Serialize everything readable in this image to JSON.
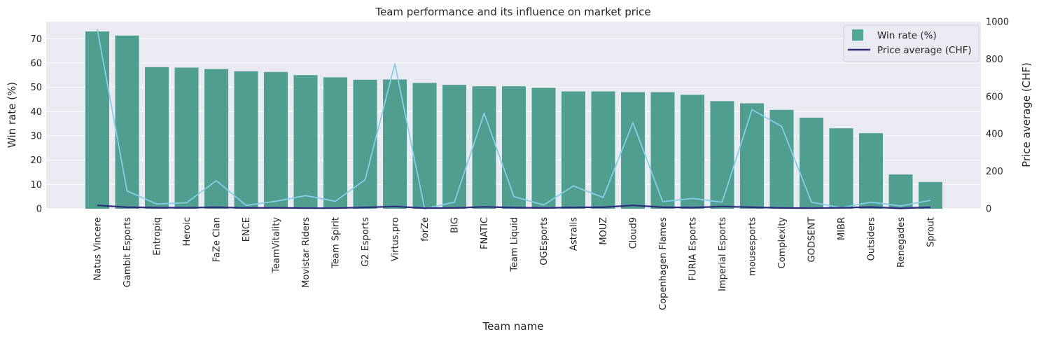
{
  "chart_data": {
    "type": "bar",
    "title": "Team performance and its influence on market price",
    "xlabel": "Team name",
    "ylabel": "Win rate (%)",
    "y2label": "Price average (CHF)",
    "ylim": [
      0,
      77
    ],
    "y2lim": [
      0,
      1000
    ],
    "yticks": [
      "0",
      "10",
      "20",
      "30",
      "40",
      "50",
      "60",
      "70"
    ],
    "y2ticks": [
      "0",
      "200",
      "400",
      "600",
      "800",
      "1000"
    ],
    "grid": true,
    "legend_position": "top-right",
    "categories": [
      "Natus Vincere",
      "Gambit Esports",
      "Entropiq",
      "Heroic",
      "FaZe Clan",
      "ENCE",
      "TeamVitality",
      "Movistar Riders",
      "Team Spirit",
      "G2 Esports",
      "Virtus.pro",
      "forZe",
      "BIG",
      "FNATIC",
      "Team Liquid",
      "OGEsports",
      "Astralis",
      "MOUZ",
      "Cloud9",
      "Copenhagen Flames",
      "FURIA Esports",
      "Imperial Esports",
      "mousesports",
      "Complexity",
      "GODSENT",
      "MIBR",
      "Outsiders",
      "Renegades",
      "Sprout"
    ],
    "series": [
      {
        "name": "Win rate (%)",
        "axis": "left",
        "kind": "bar",
        "color": "#4f9e8f",
        "values": [
          73.0,
          71.3,
          58.3,
          58.1,
          57.5,
          56.6,
          56.3,
          55.0,
          54.1,
          53.1,
          53.2,
          51.8,
          51.0,
          50.4,
          50.4,
          49.8,
          48.3,
          48.3,
          48.0,
          48.0,
          46.9,
          44.3,
          43.4,
          40.7,
          37.5,
          33.1,
          31.1,
          14.1,
          11.0
        ]
      },
      {
        "name": "Price average (CHF)",
        "axis": "right",
        "kind": "line",
        "color": "#2e2a7b",
        "values": [
          18,
          8,
          6,
          5,
          8,
          4,
          5,
          3,
          3,
          7,
          12,
          3,
          4,
          10,
          6,
          4,
          7,
          8,
          18,
          8,
          6,
          12,
          8,
          4,
          3,
          5,
          9,
          2,
          8
        ]
      },
      {
        "kind": "line",
        "axis": "right",
        "color": "#87ceeb",
        "values": [
          960,
          95,
          25,
          32,
          150,
          18,
          40,
          70,
          40,
          155,
          775,
          0,
          35,
          510,
          65,
          20,
          122,
          60,
          460,
          38,
          55,
          35,
          530,
          440,
          35,
          5,
          35,
          15,
          45
        ]
      }
    ]
  }
}
